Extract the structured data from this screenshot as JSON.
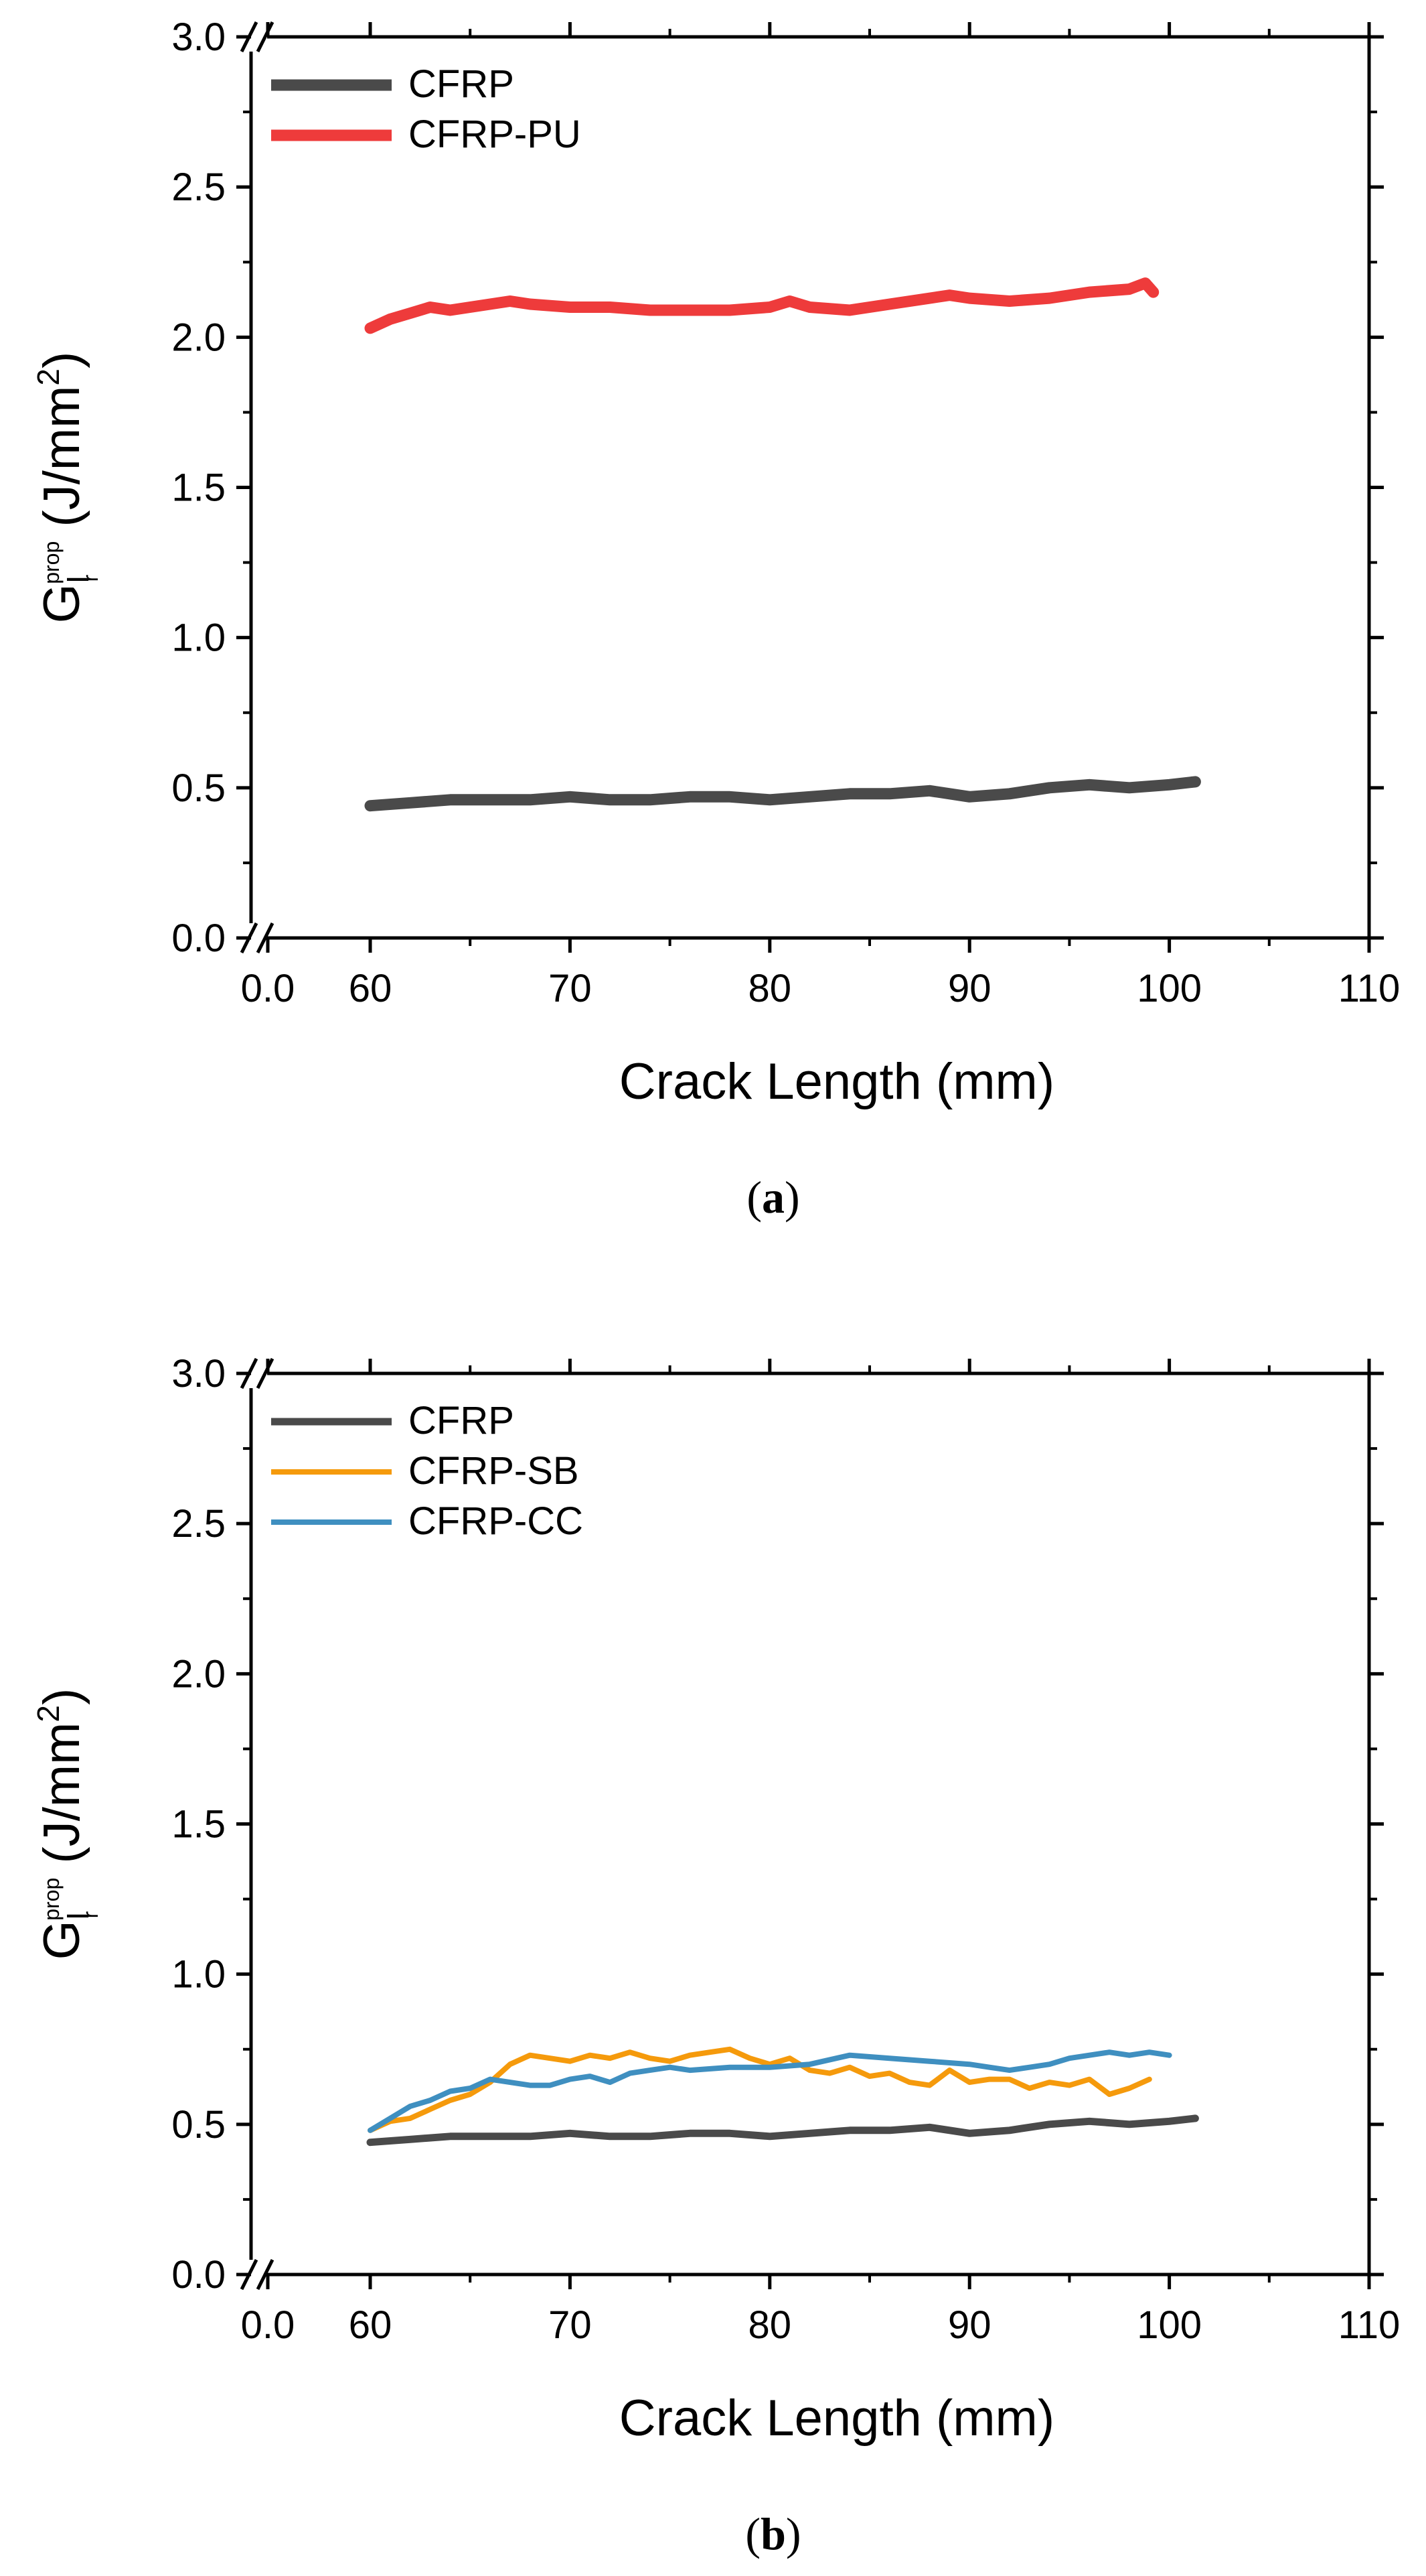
{
  "chart_data": [
    {
      "type": "line",
      "caption_letter": "a",
      "xlabel": "Crack Length (mm)",
      "ylabel": {
        "main": "G",
        "sub": "I",
        "subsub": "r",
        "sup": "prop",
        "units": " (J/mm",
        "units_sup": "2",
        "units_end": ")"
      },
      "xticks": [
        "0.0",
        "60",
        "70",
        "80",
        "90",
        "100",
        "110"
      ],
      "yticks": [
        "0.0",
        "0.5",
        "1.0",
        "1.5",
        "2.0",
        "2.5",
        "3.0"
      ],
      "xlim": [
        55,
        110
      ],
      "ylim": [
        0,
        3.0
      ],
      "axis_break": true,
      "legend_position": "top-left",
      "series": [
        {
          "name": "CFRP",
          "color": "#4a4a4a",
          "width": "thick",
          "x": [
            60,
            62,
            64,
            66,
            68,
            70,
            72,
            74,
            76,
            78,
            80,
            82,
            84,
            86,
            88,
            90,
            92,
            94,
            96,
            98,
            100,
            101.3
          ],
          "y": [
            0.44,
            0.45,
            0.46,
            0.46,
            0.46,
            0.47,
            0.46,
            0.46,
            0.47,
            0.47,
            0.46,
            0.47,
            0.48,
            0.48,
            0.49,
            0.47,
            0.48,
            0.5,
            0.51,
            0.5,
            0.51,
            0.52
          ]
        },
        {
          "name": "CFRP-PU",
          "color": "#ee3b3b",
          "width": "thick",
          "x": [
            60,
            61,
            62,
            63,
            64,
            65,
            66,
            67,
            68,
            70,
            72,
            74,
            76,
            78,
            80,
            81,
            82,
            84,
            86,
            88,
            89,
            90,
            92,
            94,
            96,
            98,
            98.8,
            99.2
          ],
          "y": [
            2.03,
            2.06,
            2.08,
            2.1,
            2.09,
            2.1,
            2.11,
            2.12,
            2.11,
            2.1,
            2.1,
            2.09,
            2.09,
            2.09,
            2.1,
            2.12,
            2.1,
            2.09,
            2.11,
            2.13,
            2.14,
            2.13,
            2.12,
            2.13,
            2.15,
            2.16,
            2.18,
            2.15
          ]
        }
      ]
    },
    {
      "type": "line",
      "caption_letter": "b",
      "xlabel": "Crack Length (mm)",
      "ylabel": {
        "main": "G",
        "sub": "I",
        "subsub": "r",
        "sup": "prop",
        "units": " (J/mm",
        "units_sup": "2",
        "units_end": ")"
      },
      "xticks": [
        "0.0",
        "60",
        "70",
        "80",
        "90",
        "100",
        "110"
      ],
      "yticks": [
        "0.0",
        "0.5",
        "1.0",
        "1.5",
        "2.0",
        "2.5",
        "3.0"
      ],
      "xlim": [
        55,
        110
      ],
      "ylim": [
        0,
        3.0
      ],
      "axis_break": true,
      "legend_position": "top-left",
      "series": [
        {
          "name": "CFRP",
          "color": "#4a4a4a",
          "width": "medium",
          "x": [
            60,
            62,
            64,
            66,
            68,
            70,
            72,
            74,
            76,
            78,
            80,
            82,
            84,
            86,
            88,
            90,
            92,
            94,
            96,
            98,
            100,
            101.3
          ],
          "y": [
            0.44,
            0.45,
            0.46,
            0.46,
            0.46,
            0.47,
            0.46,
            0.46,
            0.47,
            0.47,
            0.46,
            0.47,
            0.48,
            0.48,
            0.49,
            0.47,
            0.48,
            0.5,
            0.51,
            0.5,
            0.51,
            0.52
          ]
        },
        {
          "name": "CFRP-SB",
          "color": "#f59a0c",
          "width": "thin",
          "x": [
            60,
            61,
            62,
            63,
            64,
            65,
            66,
            67,
            68,
            69,
            70,
            71,
            72,
            73,
            74,
            75,
            76,
            77,
            78,
            79,
            80,
            81,
            82,
            83,
            84,
            85,
            86,
            87,
            88,
            89,
            90,
            91,
            92,
            93,
            94,
            95,
            96,
            97,
            98,
            99
          ],
          "y": [
            0.48,
            0.51,
            0.52,
            0.55,
            0.58,
            0.6,
            0.64,
            0.7,
            0.73,
            0.72,
            0.71,
            0.73,
            0.72,
            0.74,
            0.72,
            0.71,
            0.73,
            0.74,
            0.75,
            0.72,
            0.7,
            0.72,
            0.68,
            0.67,
            0.69,
            0.66,
            0.67,
            0.64,
            0.63,
            0.68,
            0.64,
            0.65,
            0.65,
            0.62,
            0.64,
            0.63,
            0.65,
            0.6,
            0.62,
            0.65
          ]
        },
        {
          "name": "CFRP-CC",
          "color": "#3f8fc0",
          "width": "thin",
          "x": [
            60,
            61,
            62,
            63,
            64,
            65,
            66,
            67,
            68,
            69,
            70,
            71,
            72,
            73,
            74,
            75,
            76,
            78,
            80,
            82,
            84,
            86,
            88,
            90,
            91,
            92,
            93,
            94,
            95,
            96,
            97,
            98,
            99,
            100
          ],
          "y": [
            0.48,
            0.52,
            0.56,
            0.58,
            0.61,
            0.62,
            0.65,
            0.64,
            0.63,
            0.63,
            0.65,
            0.66,
            0.64,
            0.67,
            0.68,
            0.69,
            0.68,
            0.69,
            0.69,
            0.7,
            0.73,
            0.72,
            0.71,
            0.7,
            0.69,
            0.68,
            0.69,
            0.7,
            0.72,
            0.73,
            0.74,
            0.73,
            0.74,
            0.73
          ]
        }
      ]
    }
  ]
}
